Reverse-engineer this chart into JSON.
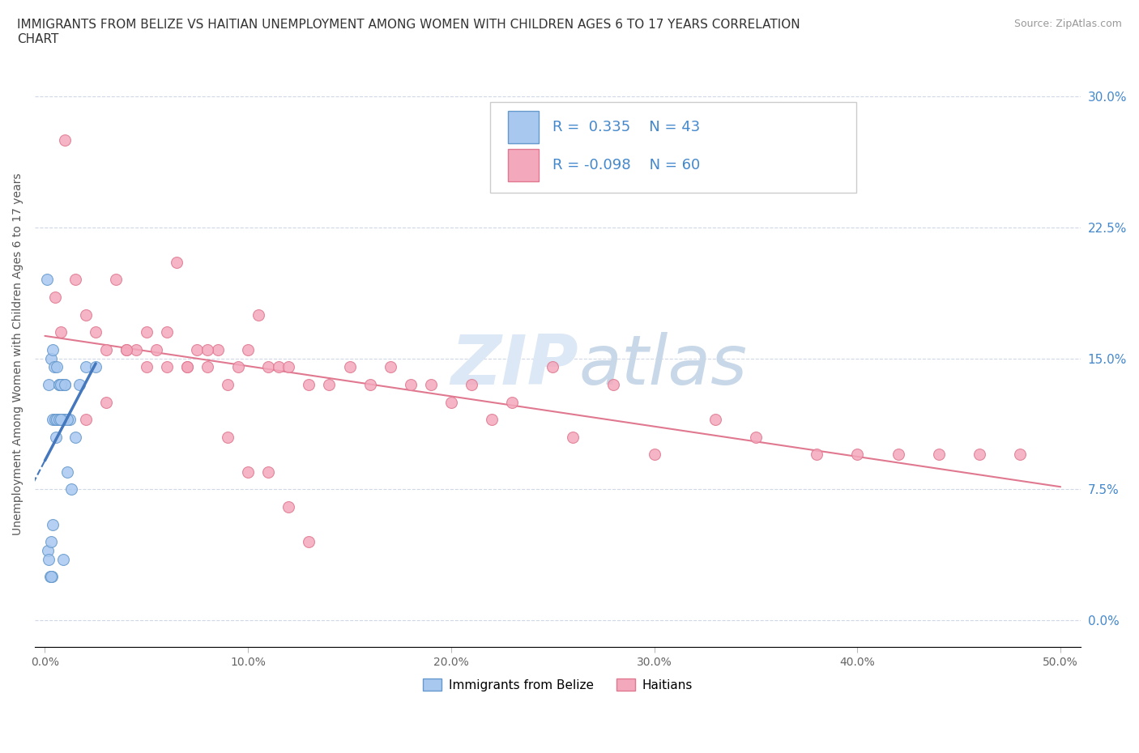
{
  "title": "IMMIGRANTS FROM BELIZE VS HAITIAN UNEMPLOYMENT AMONG WOMEN WITH CHILDREN AGES 6 TO 17 YEARS CORRELATION\nCHART",
  "source_text": "Source: ZipAtlas.com",
  "ytick_values": [
    0.0,
    7.5,
    15.0,
    22.5,
    30.0
  ],
  "xtick_values": [
    0,
    10,
    20,
    30,
    40,
    50
  ],
  "belize_R": 0.335,
  "belize_N": 43,
  "haitian_R": -0.098,
  "haitian_N": 60,
  "belize_color": "#a8c8f0",
  "haitian_color": "#f4a8bc",
  "belize_edge_color": "#6699cc",
  "haitian_edge_color": "#e07890",
  "belize_line_color": "#4477bb",
  "haitian_line_color": "#e07890",
  "watermark_color": "#dce8f5",
  "belize_scatter_x": [
    0.1,
    0.15,
    0.2,
    0.25,
    0.3,
    0.35,
    0.4,
    0.45,
    0.5,
    0.55,
    0.6,
    0.65,
    0.7,
    0.75,
    0.8,
    0.85,
    0.9,
    0.95,
    1.0,
    1.1,
    1.2,
    1.3,
    1.5,
    1.7,
    2.0,
    2.5,
    0.3,
    0.4,
    0.5,
    0.6,
    0.7,
    0.8,
    0.9,
    1.0,
    1.1,
    0.2,
    0.3,
    0.4,
    0.5,
    0.6,
    0.7,
    0.8,
    0.9
  ],
  "belize_scatter_y": [
    19.5,
    4.0,
    13.5,
    2.5,
    15.0,
    2.5,
    15.5,
    14.5,
    11.5,
    10.5,
    14.5,
    11.5,
    13.5,
    11.5,
    11.5,
    13.5,
    11.5,
    11.5,
    13.5,
    8.5,
    11.5,
    7.5,
    10.5,
    13.5,
    14.5,
    14.5,
    4.5,
    5.5,
    11.5,
    11.5,
    13.5,
    13.5,
    11.5,
    13.5,
    11.5,
    3.5,
    2.5,
    11.5,
    11.5,
    11.5,
    11.5,
    11.5,
    3.5
  ],
  "haitian_scatter_x": [
    0.5,
    0.8,
    1.0,
    1.5,
    2.0,
    2.5,
    3.0,
    3.5,
    4.0,
    4.5,
    5.0,
    5.5,
    6.0,
    6.5,
    7.0,
    7.5,
    8.0,
    8.5,
    9.0,
    9.5,
    10.0,
    10.5,
    11.0,
    11.5,
    12.0,
    13.0,
    14.0,
    15.0,
    16.0,
    17.0,
    18.0,
    19.0,
    20.0,
    21.0,
    22.0,
    23.0,
    25.0,
    26.0,
    28.0,
    30.0,
    33.0,
    35.0,
    38.0,
    40.0,
    42.0,
    44.0,
    46.0,
    48.0,
    2.0,
    3.0,
    5.0,
    7.0,
    8.0,
    4.0,
    6.0,
    9.0,
    10.0,
    11.0,
    12.0,
    13.0
  ],
  "haitian_scatter_y": [
    18.5,
    16.5,
    27.5,
    19.5,
    17.5,
    16.5,
    15.5,
    19.5,
    15.5,
    15.5,
    14.5,
    15.5,
    16.5,
    20.5,
    14.5,
    15.5,
    14.5,
    15.5,
    13.5,
    14.5,
    15.5,
    17.5,
    14.5,
    14.5,
    14.5,
    13.5,
    13.5,
    14.5,
    13.5,
    14.5,
    13.5,
    13.5,
    12.5,
    13.5,
    11.5,
    12.5,
    14.5,
    10.5,
    13.5,
    9.5,
    11.5,
    10.5,
    9.5,
    9.5,
    9.5,
    9.5,
    9.5,
    9.5,
    11.5,
    12.5,
    16.5,
    14.5,
    15.5,
    15.5,
    14.5,
    10.5,
    8.5,
    8.5,
    6.5,
    4.5
  ]
}
